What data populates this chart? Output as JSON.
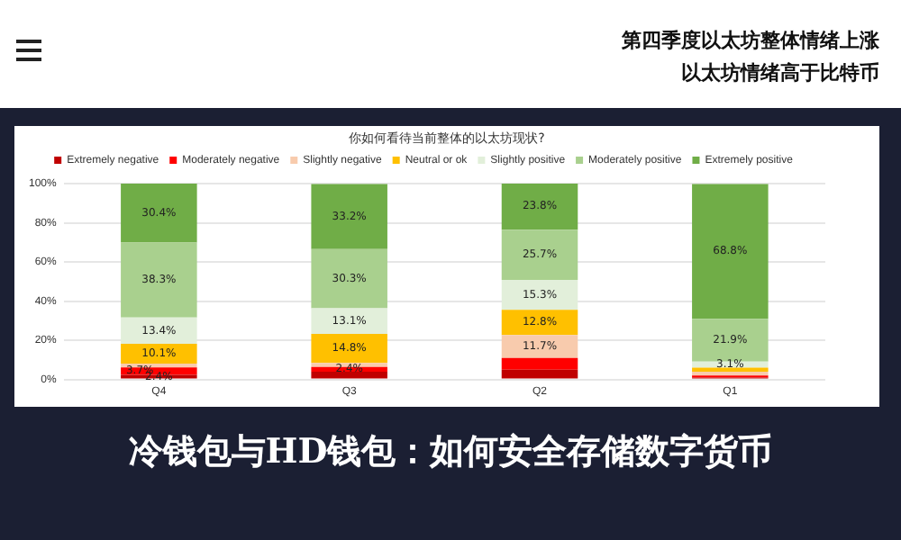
{
  "chart_data": {
    "type": "bar",
    "title": "第四季度以太坊整体情绪上涨",
    "subtitle": "以太坊情绪高于比特币",
    "annotations": [
      "你如何看待当前整体的以太坊现状?",
      "冷钱包与HD钱包：如何安全存储数字货币"
    ],
    "categories": [
      "Q4",
      "Q3",
      "Q2",
      "Q1"
    ],
    "stacked": true,
    "ylim": [
      0,
      100
    ],
    "yticks": [
      {
        "value": 0,
        "label": "0%"
      },
      {
        "value": 20,
        "label": "20%"
      },
      {
        "value": 40,
        "label": "40%"
      },
      {
        "value": 60,
        "label": "60%"
      },
      {
        "value": 80,
        "label": "80%"
      },
      {
        "value": 100,
        "label": "100%"
      }
    ],
    "grid": "y",
    "legend": "top",
    "series": [
      {
        "name": "Extremely negative",
        "color": "#c00000",
        "values": [
          2.4,
          4,
          5,
          1
        ],
        "value_labels": [
          "2.4%",
          null,
          null,
          null
        ]
      },
      {
        "name": "Moderately negative",
        "color": "#ff0000",
        "values": [
          3.7,
          2.4,
          6,
          1
        ],
        "value_labels": [
          "3.7%",
          "2.4%",
          null,
          null
        ]
      },
      {
        "name": "Slightly negative",
        "color": "#f8cbad",
        "values": [
          2,
          2,
          11.7,
          2
        ],
        "value_labels": [
          null,
          null,
          "11.7%",
          null
        ]
      },
      {
        "name": "Neutral or ok",
        "color": "#ffc000",
        "values": [
          10.1,
          14.8,
          12.8,
          2
        ],
        "value_labels": [
          "10.1%",
          "14.8%",
          "12.8%",
          null
        ]
      },
      {
        "name": "Slightly positive",
        "color": "#e2efda",
        "values": [
          13.4,
          13.1,
          15.3,
          3.1
        ],
        "value_labels": [
          "13.4%",
          "13.1%",
          "15.3%",
          "3.1%"
        ]
      },
      {
        "name": "Moderately positive",
        "color": "#a9d08e",
        "values": [
          38.3,
          30.3,
          25.7,
          21.9
        ],
        "value_labels": [
          "38.3%",
          "30.3%",
          "25.7%",
          "21.9%"
        ]
      },
      {
        "name": "Extremely positive",
        "color": "#70ad47",
        "values": [
          30.4,
          33.2,
          23.8,
          68.8
        ],
        "value_labels": [
          "30.4%",
          "33.2%",
          "23.8%",
          "68.8%"
        ]
      }
    ]
  }
}
